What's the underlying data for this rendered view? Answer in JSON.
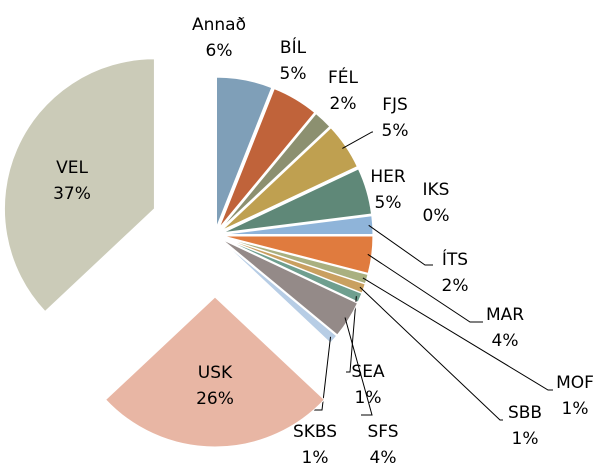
{
  "chart_data": {
    "type": "pie",
    "categories": [
      "Annað",
      "BÍL",
      "FÉL",
      "FJS",
      "HER",
      "IKS",
      "ÍTS",
      "MAR",
      "MOF",
      "SBB",
      "SEA",
      "SFS",
      "SKBS",
      "USK",
      "VEL"
    ],
    "values": [
      6,
      5,
      2,
      5,
      5,
      0,
      2,
      4,
      1,
      1,
      1,
      4,
      1,
      26,
      37
    ],
    "value_labels": [
      "6%",
      "5%",
      "2%",
      "5%",
      "5%",
      "0%",
      "2%",
      "4%",
      "1%",
      "1%",
      "1%",
      "4%",
      "1%",
      "26%",
      "37%"
    ],
    "colors": [
      "#7f9fb8",
      "#c0633a",
      "#8c9070",
      "#bfa050",
      "#5f8878",
      "#8a8faa",
      "#8fb4d9",
      "#e07b3e",
      "#a9b080",
      "#c9a060",
      "#6f9f8f",
      "#948a88",
      "#b7cde5",
      "#e8b6a4",
      "#cbcbb8"
    ]
  }
}
